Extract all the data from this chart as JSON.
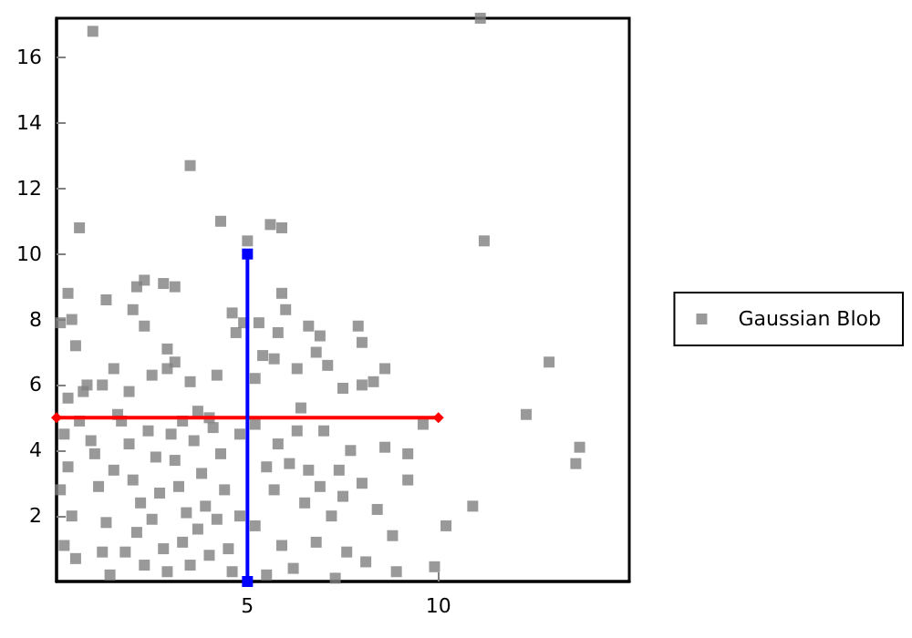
{
  "chart_data": {
    "type": "scatter",
    "xlim": [
      0,
      15
    ],
    "xticks": [
      5,
      10
    ],
    "ylim": [
      0,
      17.2
    ],
    "yticks": [
      2,
      4,
      6,
      8,
      10,
      12,
      14,
      16
    ],
    "grid": false,
    "legend": "right",
    "marker": "square",
    "series": [
      {
        "name": "Gaussian Blob",
        "color": "#808080",
        "x": [
          0.95,
          0.6,
          3.5,
          4.3,
          5.0,
          5.6,
          5.9,
          11.2,
          11.1,
          12.9,
          13.7,
          13.6,
          12.3,
          10.9,
          10.2,
          9.9,
          0.3,
          0.4,
          0.5,
          0.8,
          0.7,
          1.3,
          1.5,
          1.2,
          2.1,
          2.3,
          2.0,
          2.3,
          2.8,
          3.1,
          2.9,
          2.9,
          3.1,
          3.5,
          3.7,
          4.0,
          4.2,
          4.6,
          4.7,
          4.9,
          0.1,
          0.3,
          2.5,
          1.9,
          0.2,
          0.3,
          0.1,
          0.4,
          0.2,
          0.5,
          0.9,
          1.0,
          1.1,
          1.5,
          1.3,
          1.2,
          1.7,
          1.9,
          2.0,
          2.2,
          2.1,
          1.8,
          2.4,
          2.6,
          2.7,
          2.5,
          2.8,
          3.0,
          3.1,
          3.2,
          3.4,
          3.3,
          3.6,
          3.8,
          3.9,
          3.7,
          3.5,
          4.1,
          4.3,
          4.4,
          4.2,
          4.5,
          4.6,
          4.8,
          4.8,
          2.9,
          1.4,
          0.6,
          1.6,
          3.3,
          4.0,
          2.3,
          5.4,
          5.7,
          5.9,
          6.0,
          5.8,
          6.3,
          6.6,
          6.9,
          7.1,
          7.5,
          7.9,
          8.0,
          8.3,
          8.6,
          8.0,
          5.2,
          6.4,
          6.8,
          5.3,
          5.2,
          5.8,
          6.3,
          7.0,
          7.7,
          8.6,
          9.2,
          5.5,
          6.1,
          6.6,
          7.4,
          8.0,
          9.2,
          5.7,
          6.5,
          7.2,
          7.5,
          8.4,
          8.8,
          5.2,
          5.9,
          6.8,
          7.6,
          8.1,
          8.9,
          6.2,
          5.5,
          7.3,
          6.9,
          9.6
        ],
        "values": [
          16.8,
          10.8,
          12.7,
          11.0,
          10.4,
          10.9,
          10.8,
          10.4,
          17.2,
          6.7,
          4.1,
          3.6,
          5.1,
          2.3,
          1.7,
          0.45,
          8.8,
          8.0,
          7.2,
          6.0,
          5.8,
          8.6,
          6.5,
          6.0,
          9.0,
          9.2,
          8.3,
          7.8,
          9.1,
          9.0,
          7.1,
          6.5,
          6.7,
          6.1,
          5.2,
          5.0,
          6.3,
          8.2,
          7.6,
          7.9,
          7.9,
          5.6,
          6.3,
          5.8,
          4.5,
          3.5,
          2.8,
          2.0,
          1.1,
          0.7,
          4.3,
          3.9,
          2.9,
          3.4,
          1.8,
          0.9,
          4.9,
          4.2,
          3.1,
          2.4,
          1.5,
          0.9,
          4.6,
          3.8,
          2.7,
          1.9,
          1.0,
          4.5,
          3.7,
          2.9,
          2.1,
          1.2,
          4.3,
          3.3,
          2.3,
          1.6,
          0.5,
          4.7,
          3.9,
          2.8,
          1.9,
          1.0,
          0.3,
          4.5,
          2.0,
          0.3,
          0.2,
          4.9,
          5.1,
          4.9,
          0.8,
          0.5,
          6.9,
          6.8,
          8.8,
          8.3,
          7.6,
          6.5,
          7.8,
          7.5,
          6.6,
          5.9,
          7.8,
          7.3,
          6.1,
          6.5,
          6.0,
          6.2,
          5.3,
          7.0,
          7.9,
          4.8,
          4.2,
          4.6,
          4.6,
          4.0,
          4.1,
          3.9,
          3.5,
          3.6,
          3.4,
          3.4,
          3.0,
          3.1,
          2.8,
          2.4,
          2.0,
          2.6,
          2.2,
          1.4,
          1.7,
          1.1,
          1.2,
          0.9,
          0.6,
          0.3,
          0.4,
          0.2,
          0.1,
          2.9,
          4.8
        ]
      },
      {
        "type": "line",
        "color": "#ff0000",
        "marker": "diamond",
        "x": [
          0,
          10
        ],
        "values": [
          5,
          5
        ]
      },
      {
        "type": "line",
        "color": "#0000ff",
        "marker": "square",
        "x": [
          5,
          5
        ],
        "values": [
          0,
          10
        ]
      }
    ]
  }
}
